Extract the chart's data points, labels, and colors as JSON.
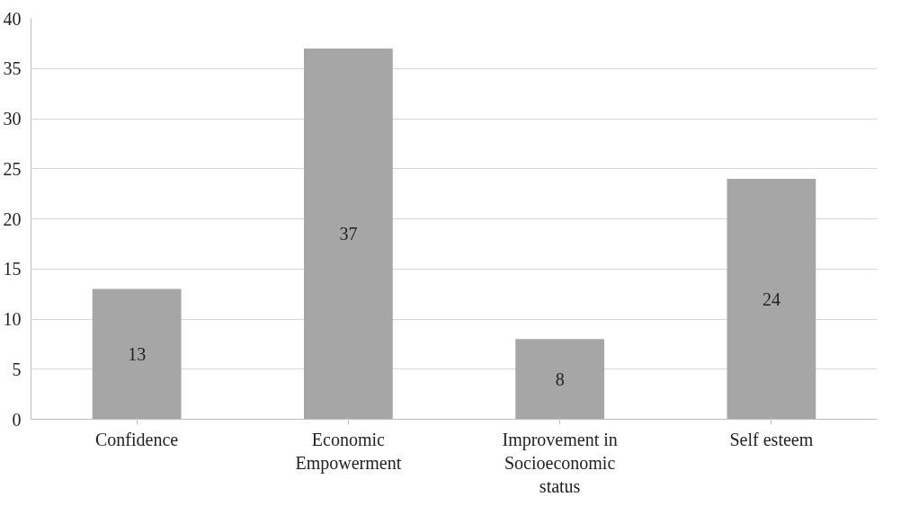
{
  "chart_data": {
    "type": "bar",
    "categories": [
      "Confidence",
      "Economic Empowerment",
      "Improvement in Socioeconomic status",
      "Self esteem"
    ],
    "values": [
      13,
      37,
      8,
      24
    ],
    "color": "#a6a6a6",
    "ylim": [
      0,
      40
    ],
    "yticks": [
      0,
      5,
      10,
      15,
      20,
      25,
      30,
      35,
      40
    ],
    "grid": "y",
    "data_labels": true
  }
}
